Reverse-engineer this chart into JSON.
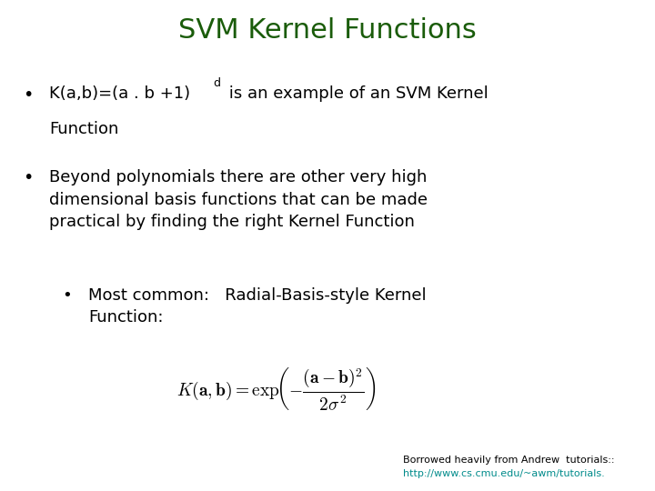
{
  "title": "SVM Kernel Functions",
  "title_color": "#1A5C0A",
  "title_fontsize": 22,
  "background_color": "#FFFFFF",
  "text_color": "#000000",
  "text_fontsize": 13,
  "formula_fontsize": 13,
  "footnote_fontsize": 8,
  "footnote_color": "#000000",
  "link_color": "#008B8B",
  "bullet2": "Beyond polynomials there are other very high\ndimensional basis functions that can be made\npractical by finding the right Kernel Function",
  "bullet3": "Most common:   Radial-Basis-style Kernel\nFunction:",
  "footnote1": "Borrowed heavily from Andrew  tutorials::",
  "footnote2": "http://www.cs.cmu.edu/~awm/tutorials."
}
